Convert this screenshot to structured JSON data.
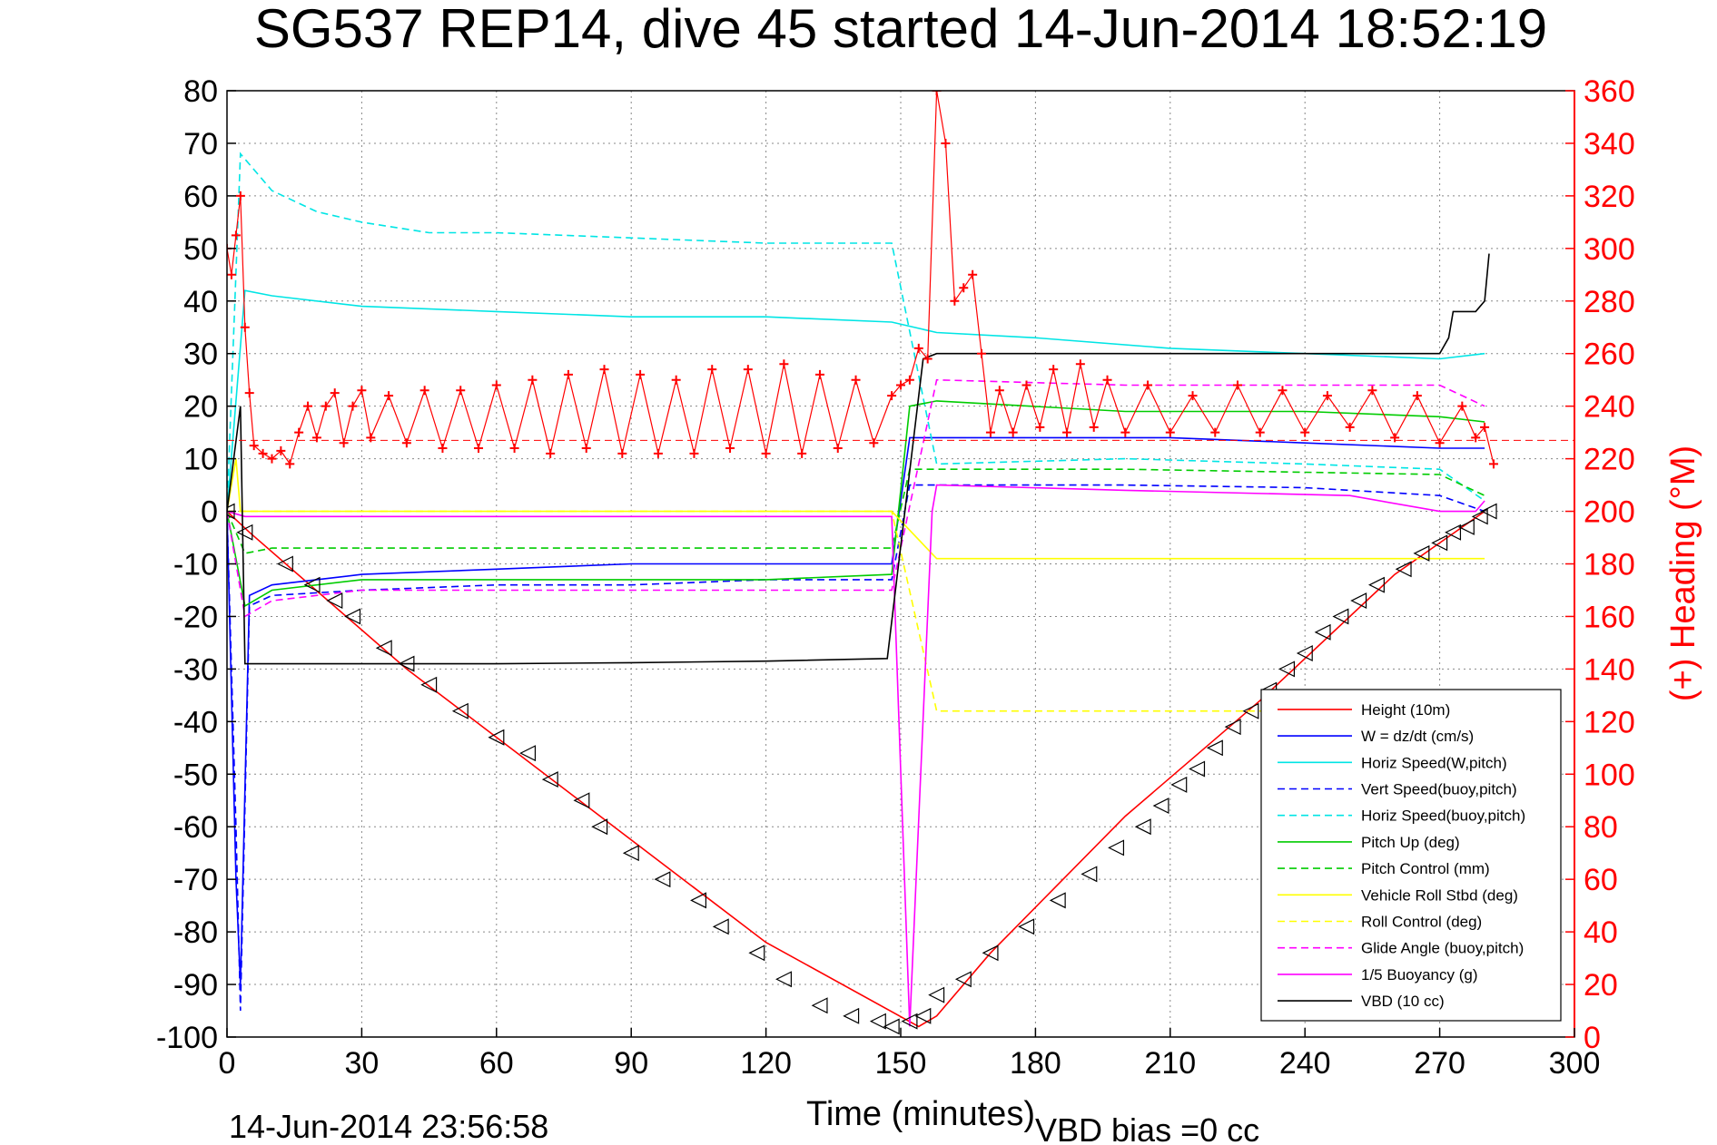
{
  "chart_data": {
    "type": "line",
    "title": "SG537 REP14, dive 45 started 14-Jun-2014 18:52:19",
    "xlabel": "Time (minutes)",
    "ylabel": "",
    "y2label": "(+) Heading (°M)",
    "xlim": [
      0,
      300
    ],
    "ylim": [
      -100,
      80
    ],
    "y2lim": [
      0,
      360
    ],
    "xticks": [
      0,
      30,
      60,
      90,
      120,
      150,
      180,
      210,
      240,
      270,
      300
    ],
    "yticks": [
      80,
      70,
      60,
      50,
      40,
      30,
      20,
      10,
      0,
      -10,
      -20,
      -30,
      -40,
      -50,
      -60,
      -70,
      -80,
      -90,
      -100
    ],
    "y2ticks": [
      360,
      340,
      320,
      300,
      280,
      260,
      240,
      220,
      200,
      180,
      160,
      140,
      120,
      100,
      80,
      60,
      40,
      20,
      0
    ],
    "grid": true,
    "legend_position": "bottom-right",
    "footer_left": "14-Jun-2014 23:56:58",
    "footer_right": "VBD bias =0 cc",
    "series": [
      {
        "name": "Height (10m)",
        "color": "#ff0000",
        "style": "solid",
        "x": [
          0,
          5,
          40,
          80,
          120,
          154,
          158,
          170,
          200,
          230,
          260,
          280
        ],
        "y": [
          0,
          -4,
          -30,
          -56,
          -82,
          -98,
          -96,
          -84,
          -58,
          -36,
          -12,
          0
        ]
      },
      {
        "name": "W = dz/dt (cm/s)",
        "color": "#0000ff",
        "style": "solid",
        "x": [
          0,
          2,
          3,
          5,
          10,
          30,
          60,
          90,
          120,
          148,
          152,
          158,
          180,
          210,
          240,
          270,
          280
        ],
        "y": [
          0,
          -70,
          -90,
          -16,
          -14,
          -12,
          -11,
          -10,
          -10,
          -10,
          14,
          14,
          14,
          14,
          13,
          12,
          12
        ]
      },
      {
        "name": "Horiz Speed(W,pitch)",
        "color": "#00e5e5",
        "style": "solid",
        "x": [
          0,
          4,
          10,
          30,
          60,
          90,
          120,
          148,
          158,
          180,
          210,
          240,
          270,
          280
        ],
        "y": [
          0,
          42,
          41,
          39,
          38,
          37,
          37,
          36,
          34,
          33,
          31,
          30,
          29,
          30
        ]
      },
      {
        "name": "Vert Speed(buoy,pitch)",
        "color": "#0000ff",
        "style": "dashed",
        "x": [
          0,
          2,
          3,
          5,
          10,
          30,
          60,
          90,
          120,
          148,
          152,
          158,
          200,
          240,
          270,
          280
        ],
        "y": [
          0,
          -60,
          -95,
          -18,
          -16,
          -15,
          -14,
          -14,
          -13,
          -13,
          5,
          5,
          5,
          4.5,
          3,
          0
        ]
      },
      {
        "name": "Horiz Speed(buoy,pitch)",
        "color": "#00e5e5",
        "style": "dashed",
        "x": [
          0,
          3,
          10,
          20,
          30,
          45,
          60,
          90,
          120,
          148,
          158,
          200,
          240,
          270,
          280
        ],
        "y": [
          0,
          68,
          61,
          57,
          55,
          53,
          53,
          52,
          51,
          51,
          9,
          10,
          9,
          8,
          2
        ]
      },
      {
        "name": "Pitch Up (deg)",
        "color": "#00cc00",
        "style": "solid",
        "x": [
          0,
          4,
          10,
          30,
          60,
          90,
          120,
          148,
          152,
          158,
          200,
          240,
          270,
          280
        ],
        "y": [
          0,
          -18,
          -15,
          -13,
          -13,
          -13,
          -13,
          -12,
          20,
          21,
          19,
          19,
          18,
          17
        ]
      },
      {
        "name": "Pitch Control (mm)",
        "color": "#00cc00",
        "style": "dashed",
        "x": [
          0,
          4,
          10,
          148,
          152,
          158,
          200,
          270,
          280
        ],
        "y": [
          0,
          -8,
          -7,
          -7,
          8,
          8,
          8,
          7,
          3
        ]
      },
      {
        "name": "Vehicle Roll Stbd (deg)",
        "color": "#ffff00",
        "style": "solid",
        "x": [
          0,
          2,
          3,
          148,
          158,
          200,
          250,
          280
        ],
        "y": [
          0,
          10,
          0,
          0,
          -9,
          -9,
          -9,
          -9
        ]
      },
      {
        "name": "Roll Control (deg)",
        "color": "#ffff00",
        "style": "dashed",
        "x": [
          0,
          3,
          148,
          158,
          200,
          250,
          280
        ],
        "y": [
          0,
          0,
          0,
          -38,
          -38,
          -38,
          -38
        ]
      },
      {
        "name": "Glide Angle (buoy,pitch)",
        "color": "#ff00ff",
        "style": "dashed",
        "x": [
          0,
          4,
          10,
          30,
          60,
          90,
          120,
          148,
          158,
          200,
          240,
          270,
          280
        ],
        "y": [
          0,
          -20,
          -17,
          -15,
          -15,
          -15,
          -15,
          -15,
          25,
          24,
          24,
          24,
          20
        ]
      },
      {
        "name": "1/5 Buoyancy (g)",
        "color": "#ff00ff",
        "style": "solid",
        "x": [
          0,
          4,
          148,
          152,
          157,
          158,
          200,
          250,
          270,
          278,
          280
        ],
        "y": [
          0,
          -1,
          -1,
          -98,
          0,
          5,
          4,
          3,
          0,
          0,
          2
        ]
      },
      {
        "name": "VBD (10 cc)",
        "color": "#000000",
        "style": "solid",
        "x": [
          0,
          3,
          4,
          30,
          60,
          90,
          120,
          147,
          155,
          158,
          200,
          240,
          270,
          272,
          273,
          278,
          280,
          281
        ],
        "y": [
          0,
          20,
          -29,
          -29,
          -29,
          -28.8,
          -28.5,
          -28,
          29,
          30,
          30,
          30,
          30,
          33,
          38,
          38,
          40,
          49
        ]
      }
    ],
    "heading": {
      "name": "(+) Heading (°M)",
      "color": "#ff0000",
      "mean": 227,
      "x": [
        0,
        1,
        2,
        3,
        4,
        5,
        6,
        8,
        10,
        12,
        14,
        16,
        18,
        20,
        22,
        24,
        26,
        28,
        30,
        32,
        36,
        40,
        44,
        48,
        52,
        56,
        60,
        64,
        68,
        72,
        76,
        80,
        84,
        88,
        92,
        96,
        100,
        104,
        108,
        112,
        116,
        120,
        124,
        128,
        132,
        136,
        140,
        144,
        148,
        150,
        152,
        154,
        156,
        158,
        160,
        162,
        164,
        166,
        168,
        170,
        172,
        175,
        178,
        181,
        184,
        187,
        190,
        193,
        196,
        200,
        205,
        210,
        215,
        220,
        225,
        230,
        235,
        240,
        245,
        250,
        255,
        260,
        265,
        270,
        275,
        278,
        280,
        282
      ],
      "y": [
        300,
        290,
        305,
        320,
        270,
        245,
        225,
        222,
        220,
        223,
        218,
        230,
        240,
        228,
        240,
        245,
        226,
        240,
        246,
        228,
        244,
        226,
        246,
        224,
        246,
        224,
        248,
        224,
        250,
        222,
        252,
        224,
        254,
        222,
        252,
        222,
        250,
        222,
        254,
        224,
        254,
        222,
        256,
        222,
        252,
        224,
        250,
        226,
        244,
        248,
        250,
        262,
        258,
        360,
        340,
        280,
        285,
        290,
        260,
        230,
        246,
        230,
        248,
        232,
        254,
        230,
        256,
        232,
        250,
        230,
        248,
        230,
        244,
        230,
        248,
        230,
        246,
        230,
        244,
        232,
        246,
        228,
        244,
        226,
        240,
        228,
        232,
        218
      ]
    },
    "depth_markers": {
      "name": "Height (10m)",
      "color": "#000000",
      "x": [
        0,
        4,
        13,
        19,
        24,
        28,
        35,
        40,
        45,
        52,
        60,
        67,
        72,
        79,
        83,
        90,
        97,
        105,
        110,
        118,
        124,
        132,
        139,
        145,
        148,
        152,
        155,
        158,
        164,
        170,
        178,
        185,
        192,
        198,
        204,
        208,
        212,
        216,
        220,
        224,
        228,
        232,
        236,
        240,
        244,
        248,
        252,
        256,
        262,
        266,
        270,
        273,
        276,
        279,
        281
      ],
      "y": [
        0,
        -4,
        -10,
        -14,
        -17,
        -20,
        -26,
        -29,
        -33,
        -38,
        -43,
        -46,
        -51,
        -55,
        -60,
        -65,
        -70,
        -74,
        -79,
        -84,
        -89,
        -94,
        -96,
        -97,
        -98,
        -97,
        -96,
        -92,
        -89,
        -84,
        -79,
        -74,
        -69,
        -64,
        -60,
        -56,
        -52,
        -49,
        -45,
        -41,
        -38,
        -34,
        -30,
        -27,
        -23,
        -20,
        -17,
        -14,
        -11,
        -8,
        -6,
        -4,
        -3,
        -1,
        0
      ]
    }
  }
}
